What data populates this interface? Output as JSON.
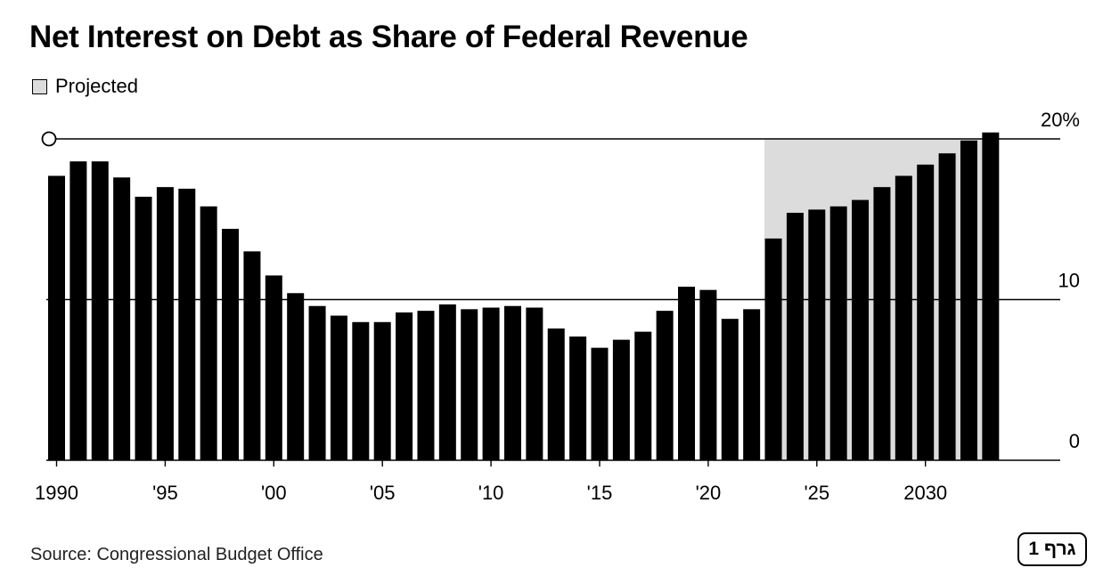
{
  "chart_data": {
    "type": "bar",
    "title": "Net Interest on Debt as Share of Federal Revenue",
    "legend": [
      {
        "label": "Projected",
        "color": "#dcdcdc"
      }
    ],
    "legend_placement": "top-left",
    "ylabel": "",
    "xlabel": "",
    "ylim": [
      0,
      20
    ],
    "y_ticks": [
      {
        "value": 0,
        "label": "0"
      },
      {
        "value": 10,
        "label": "10"
      },
      {
        "value": 20,
        "label": "20%"
      }
    ],
    "x_ticks": [
      {
        "year": 1990,
        "label": "1990"
      },
      {
        "year": 1995,
        "label": "'95"
      },
      {
        "year": 2000,
        "label": "'00"
      },
      {
        "year": 2005,
        "label": "'05"
      },
      {
        "year": 2010,
        "label": "'10"
      },
      {
        "year": 2015,
        "label": "'15"
      },
      {
        "year": 2020,
        "label": "'20"
      },
      {
        "year": 2025,
        "label": "'25"
      },
      {
        "year": 2030,
        "label": "2030"
      }
    ],
    "projected_from": 2023,
    "categories": [
      1990,
      1991,
      1992,
      1993,
      1994,
      1995,
      1996,
      1997,
      1998,
      1999,
      2000,
      2001,
      2002,
      2003,
      2004,
      2005,
      2006,
      2007,
      2008,
      2009,
      2010,
      2011,
      2012,
      2013,
      2014,
      2015,
      2016,
      2017,
      2018,
      2019,
      2020,
      2021,
      2022,
      2023,
      2024,
      2025,
      2026,
      2027,
      2028,
      2029,
      2030,
      2031,
      2032,
      2033
    ],
    "values": [
      17.7,
      18.6,
      18.6,
      17.6,
      16.4,
      17.0,
      16.9,
      15.8,
      14.4,
      13.0,
      11.5,
      10.4,
      9.6,
      9.0,
      8.6,
      8.6,
      9.2,
      9.3,
      9.7,
      9.4,
      9.5,
      9.6,
      9.5,
      8.2,
      7.7,
      7.0,
      7.5,
      8.0,
      9.3,
      10.8,
      10.6,
      8.8,
      9.4,
      13.8,
      15.4,
      15.6,
      15.8,
      16.2,
      17.0,
      17.7,
      18.4,
      19.1,
      19.9,
      20.4
    ],
    "colors": {
      "bar": "#000000",
      "projected_band": "#dcdcdc",
      "gridline": "#000000"
    }
  },
  "source": "Source: Congressional Budget Office",
  "badge": "גרף 1"
}
